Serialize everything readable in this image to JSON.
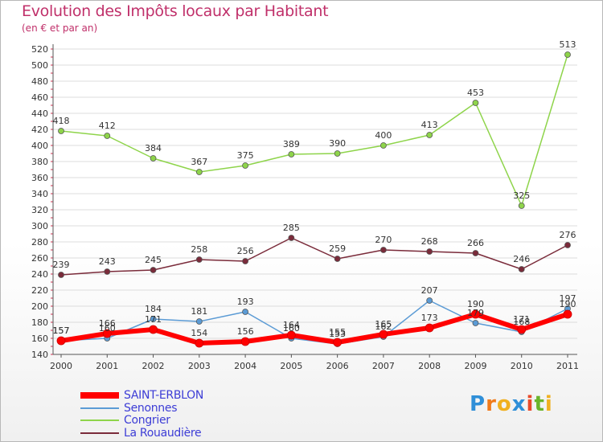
{
  "title": "Evolution des Impôts locaux par Habitant",
  "subtitle": "(en € et par an)",
  "logo": {
    "letters": [
      "P",
      "r",
      "o",
      "x",
      "i",
      "t",
      "i"
    ],
    "colors": [
      "#2f8fd8",
      "#f07a1a",
      "#f0b020",
      "#2f8fd8",
      "#e84a2a",
      "#6ab42a",
      "#f0b020"
    ]
  },
  "chart_data": {
    "type": "line",
    "title": "Evolution des Impôts locaux par Habitant",
    "subtitle": "(en € et par an)",
    "xlabel": "",
    "ylabel": "",
    "x": [
      "2000",
      "2001",
      "2002",
      "2003",
      "2004",
      "2005",
      "2006",
      "2007",
      "2008",
      "2009",
      "2010",
      "2011"
    ],
    "ylim": [
      140,
      520
    ],
    "yticks": [
      140,
      160,
      180,
      200,
      220,
      240,
      260,
      280,
      300,
      320,
      340,
      360,
      380,
      400,
      420,
      440,
      460,
      480,
      500,
      520
    ],
    "grid": "horizontal",
    "legend_position": "bottom-left",
    "series": [
      {
        "name": "SAINT-ERBLON",
        "color": "#ff0000",
        "width": 6,
        "values": [
          157,
          166,
          171,
          154,
          156,
          164,
          155,
          165,
          173,
          190,
          171,
          190
        ]
      },
      {
        "name": "Senonnes",
        "color": "#5b9bd5",
        "width": 1.5,
        "values": [
          157,
          160,
          184,
          181,
          193,
          160,
          153,
          162,
          207,
          179,
          168,
          197
        ]
      },
      {
        "name": "Congrier",
        "color": "#8ed44a",
        "width": 1.5,
        "values": [
          418,
          412,
          384,
          367,
          375,
          389,
          390,
          400,
          413,
          453,
          325,
          513
        ]
      },
      {
        "name": "La Rouaudière",
        "color": "#7a2b3a",
        "width": 1.5,
        "values": [
          239,
          243,
          245,
          258,
          256,
          285,
          259,
          270,
          268,
          266,
          246,
          276
        ]
      }
    ]
  }
}
